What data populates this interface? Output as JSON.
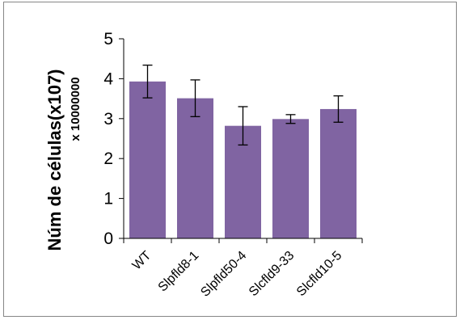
{
  "chart_data": {
    "type": "bar",
    "title": "",
    "xlabel": "",
    "ylabel": "Núm de células(x107)",
    "ylabel_multiplier": "x 10000000",
    "categories": [
      "WT",
      "Slpfld8-1",
      "Slpfld50-4",
      "Slcfld9-33",
      "Slcfld10-5"
    ],
    "series": [
      {
        "values": [
          3.93,
          3.51,
          2.82,
          2.99,
          3.24
        ],
        "error": [
          0.41,
          0.46,
          0.48,
          0.11,
          0.33
        ],
        "color": "#8064a2"
      }
    ],
    "ylim": [
      0,
      5
    ],
    "yticks": [
      0,
      1,
      2,
      3,
      4,
      5
    ],
    "grid": false,
    "legend": "none"
  }
}
